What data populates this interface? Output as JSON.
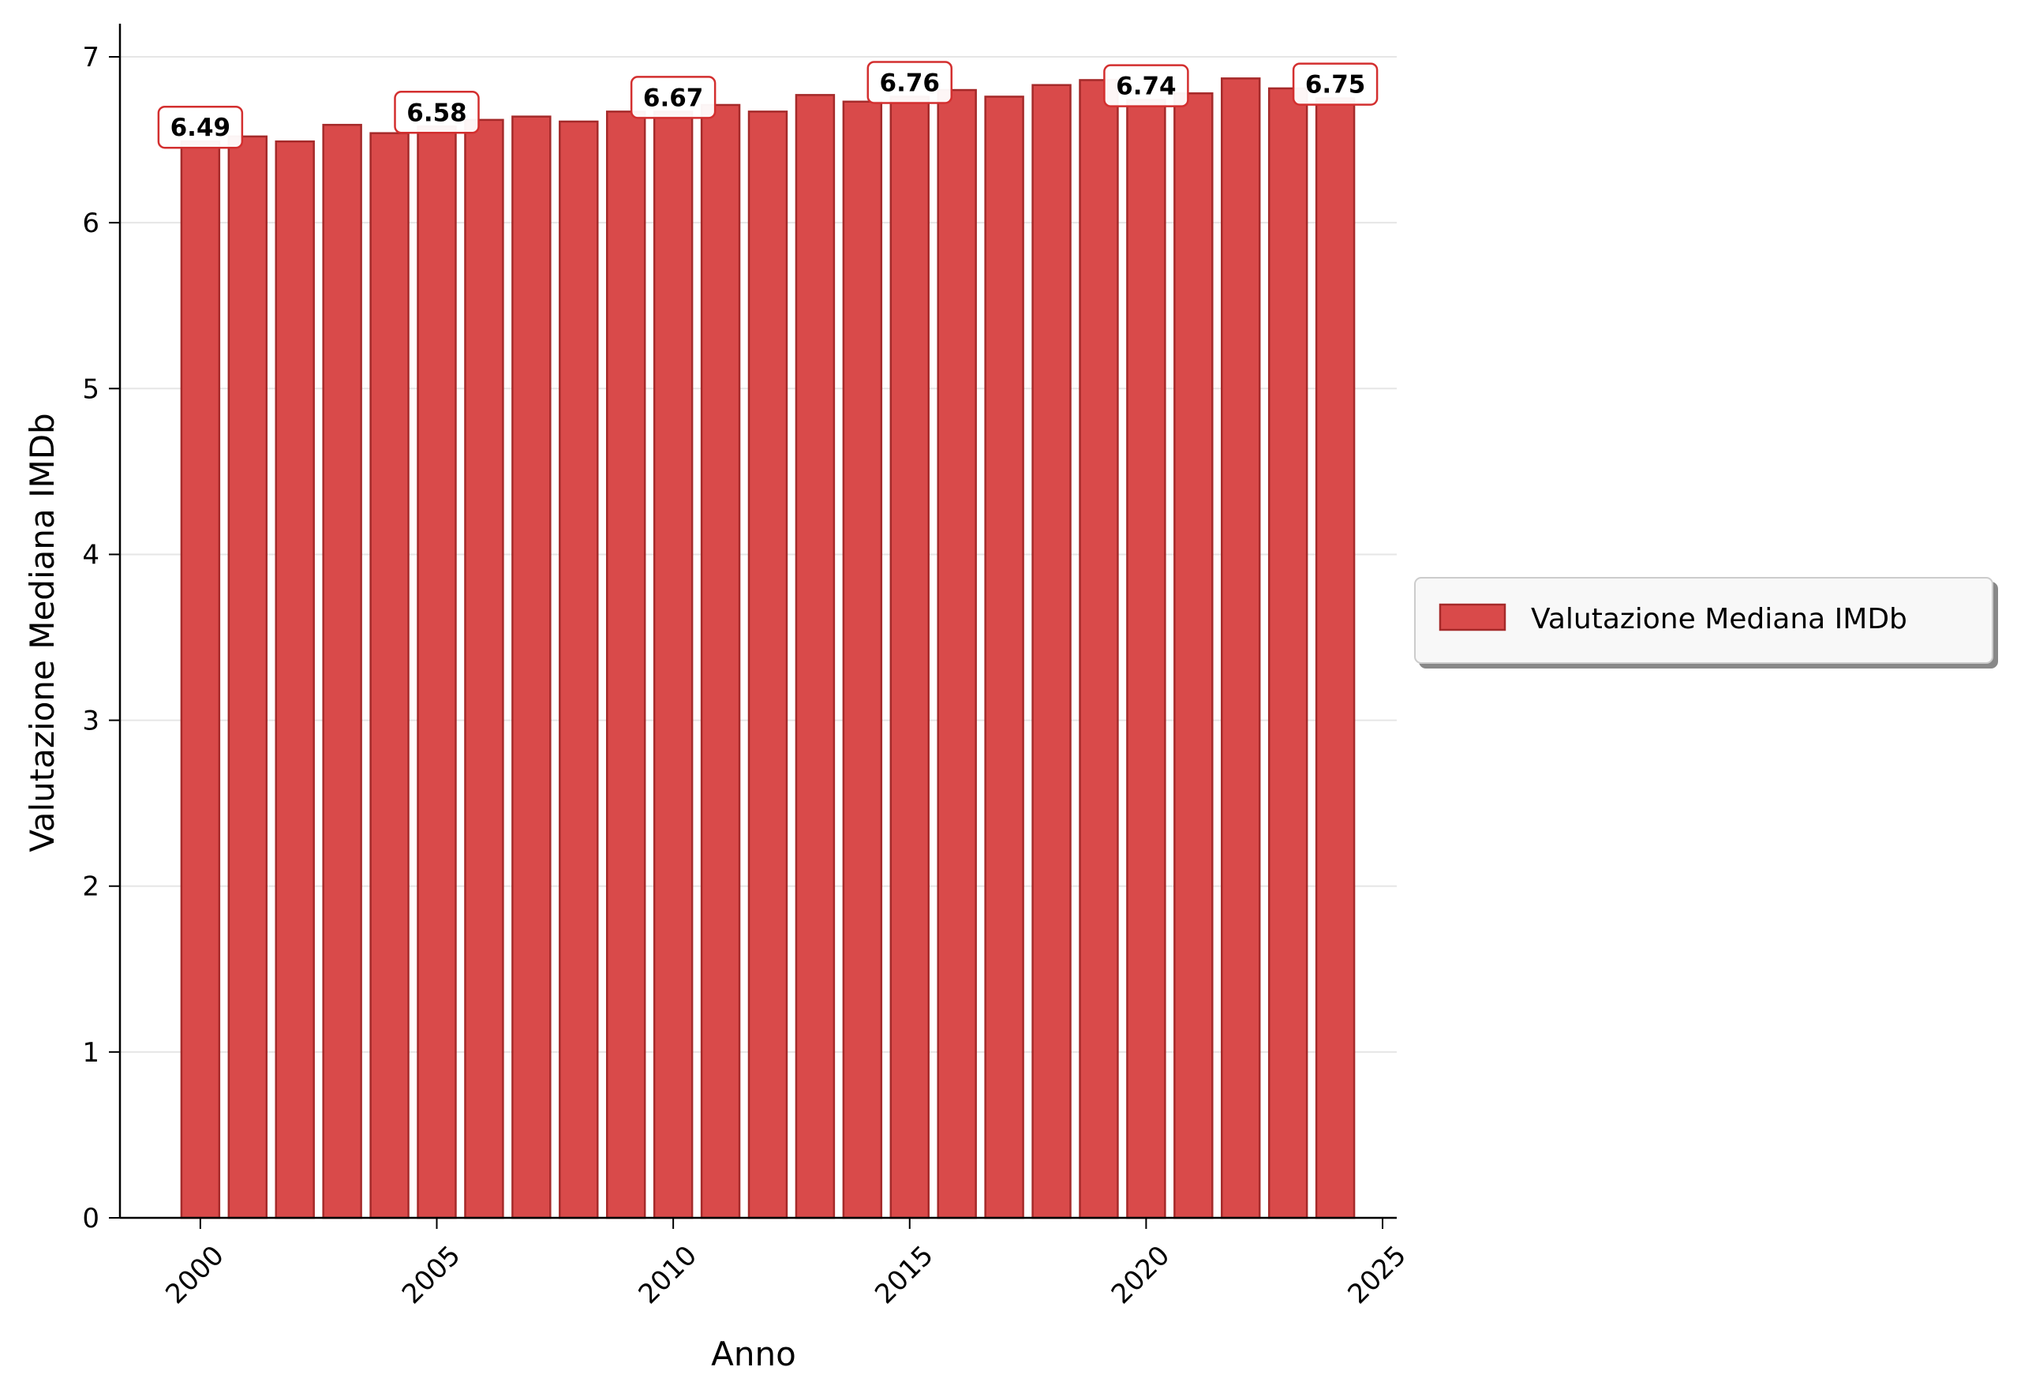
{
  "chart_data": {
    "type": "bar",
    "x": [
      2000,
      2001,
      2002,
      2003,
      2004,
      2005,
      2006,
      2007,
      2008,
      2009,
      2010,
      2011,
      2012,
      2013,
      2014,
      2015,
      2016,
      2017,
      2018,
      2019,
      2020,
      2021,
      2022,
      2023,
      2024
    ],
    "series": [
      {
        "name": "Valutazione Mediana IMDb",
        "values": [
          6.49,
          6.52,
          6.49,
          6.59,
          6.54,
          6.58,
          6.62,
          6.64,
          6.61,
          6.67,
          6.67,
          6.71,
          6.67,
          6.77,
          6.73,
          6.76,
          6.8,
          6.76,
          6.83,
          6.86,
          6.74,
          6.78,
          6.87,
          6.81,
          6.75
        ]
      }
    ],
    "annotations": [
      {
        "x": 2000,
        "text": "6.49"
      },
      {
        "x": 2005,
        "text": "6.58"
      },
      {
        "x": 2010,
        "text": "6.67"
      },
      {
        "x": 2015,
        "text": "6.76"
      },
      {
        "x": 2020,
        "text": "6.74"
      },
      {
        "x": 2024,
        "text": "6.75"
      }
    ],
    "title": "",
    "xlabel": "Anno",
    "ylabel": "Valutazione Mediana IMDb",
    "xlim": [
      1998.3,
      2025.3
    ],
    "ylim": [
      0,
      7.2
    ],
    "xticks": [
      "2000",
      "2005",
      "2010",
      "2015",
      "2020",
      "2025"
    ],
    "yticks": [
      "0",
      "1",
      "2",
      "3",
      "4",
      "5",
      "6",
      "7"
    ],
    "grid": "horizontal",
    "legend_position": "center-right, outside plot",
    "colors": {
      "bar_fill": "#d94a4a",
      "bar_edge": "#a52a2a",
      "label_box_edge": "#d32f2f",
      "grid": "#e6e6e6"
    }
  }
}
